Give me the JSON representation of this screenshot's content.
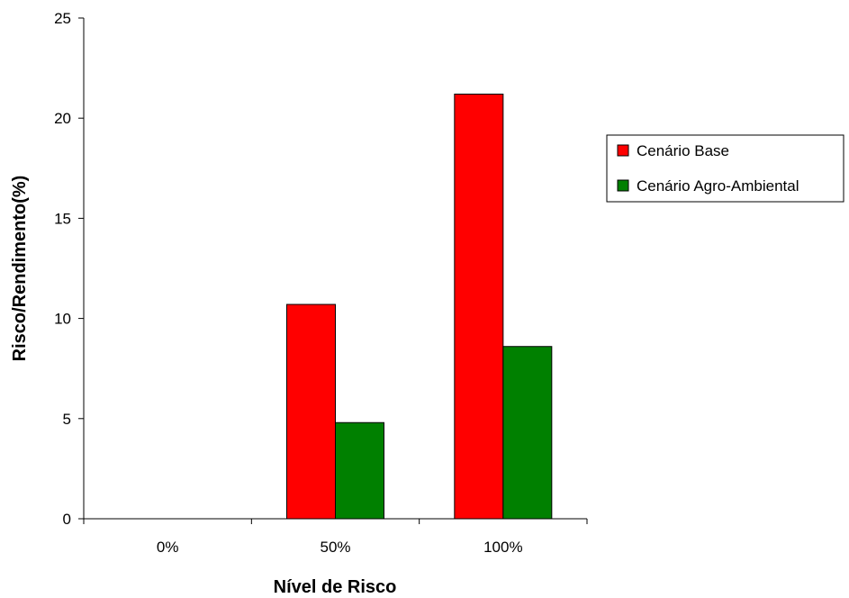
{
  "chart_data": {
    "type": "bar",
    "categories": [
      "0%",
      "50%",
      "100%"
    ],
    "series": [
      {
        "name": "Cenário Base",
        "values": [
          0,
          10.7,
          21.2
        ],
        "color": "#ff0000"
      },
      {
        "name": "Cenário Agro-Ambiental",
        "values": [
          0,
          4.8,
          8.6
        ],
        "color": "#008000"
      }
    ],
    "xlabel": "Nível de Risco",
    "ylabel": "Risco/Rendimento(%)",
    "ylim": [
      0,
      25
    ],
    "yticks": [
      0,
      5,
      10,
      15,
      20,
      25
    ],
    "grid": false,
    "legend": "right"
  }
}
